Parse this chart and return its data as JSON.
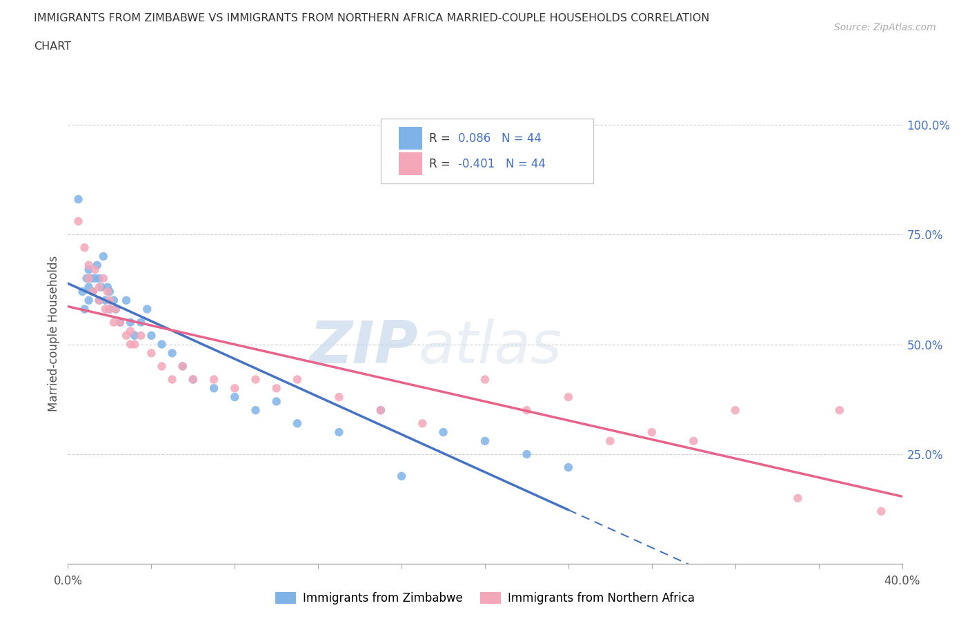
{
  "title_line1": "IMMIGRANTS FROM ZIMBABWE VS IMMIGRANTS FROM NORTHERN AFRICA MARRIED-COUPLE HOUSEHOLDS CORRELATION",
  "title_line2": "CHART",
  "source_text": "Source: ZipAtlas.com",
  "ylabel": "Married-couple Households",
  "xlim": [
    0.0,
    0.4
  ],
  "ylim": [
    0.0,
    1.05
  ],
  "ytick_labels_right": [
    "100.0%",
    "75.0%",
    "50.0%",
    "25.0%"
  ],
  "ytick_positions_right": [
    1.0,
    0.75,
    0.5,
    0.25
  ],
  "r_zimbabwe": 0.086,
  "n_zimbabwe": 44,
  "r_north_africa": -0.401,
  "n_north_africa": 44,
  "color_zimbabwe": "#7fb3e8",
  "color_north_africa": "#f4a7b9",
  "line_color_zimbabwe": "#4472c4",
  "line_color_north_africa": "#e8628a",
  "watermark_part1": "ZIP",
  "watermark_part2": "atlas",
  "scatter_zimbabwe_x": [
    0.005,
    0.007,
    0.008,
    0.009,
    0.01,
    0.01,
    0.01,
    0.011,
    0.012,
    0.013,
    0.014,
    0.015,
    0.015,
    0.016,
    0.017,
    0.018,
    0.019,
    0.02,
    0.02,
    0.022,
    0.023,
    0.025,
    0.028,
    0.03,
    0.032,
    0.035,
    0.038,
    0.04,
    0.045,
    0.05,
    0.055,
    0.06,
    0.07,
    0.08,
    0.09,
    0.1,
    0.11,
    0.13,
    0.15,
    0.16,
    0.18,
    0.2,
    0.22,
    0.24
  ],
  "scatter_zimbabwe_y": [
    0.83,
    0.62,
    0.58,
    0.65,
    0.6,
    0.63,
    0.67,
    0.65,
    0.62,
    0.65,
    0.68,
    0.6,
    0.65,
    0.63,
    0.7,
    0.6,
    0.63,
    0.58,
    0.62,
    0.6,
    0.58,
    0.55,
    0.6,
    0.55,
    0.52,
    0.55,
    0.58,
    0.52,
    0.5,
    0.48,
    0.45,
    0.42,
    0.4,
    0.38,
    0.35,
    0.37,
    0.32,
    0.3,
    0.35,
    0.2,
    0.3,
    0.28,
    0.25,
    0.22
  ],
  "scatter_north_africa_x": [
    0.005,
    0.008,
    0.01,
    0.01,
    0.012,
    0.013,
    0.015,
    0.015,
    0.017,
    0.018,
    0.019,
    0.02,
    0.02,
    0.022,
    0.023,
    0.025,
    0.028,
    0.03,
    0.03,
    0.032,
    0.035,
    0.04,
    0.045,
    0.05,
    0.055,
    0.06,
    0.07,
    0.08,
    0.09,
    0.1,
    0.11,
    0.13,
    0.15,
    0.17,
    0.2,
    0.22,
    0.24,
    0.26,
    0.28,
    0.3,
    0.32,
    0.35,
    0.37,
    0.39
  ],
  "scatter_north_africa_y": [
    0.78,
    0.72,
    0.65,
    0.68,
    0.62,
    0.67,
    0.6,
    0.63,
    0.65,
    0.58,
    0.62,
    0.58,
    0.6,
    0.55,
    0.58,
    0.55,
    0.52,
    0.5,
    0.53,
    0.5,
    0.52,
    0.48,
    0.45,
    0.42,
    0.45,
    0.42,
    0.42,
    0.4,
    0.42,
    0.4,
    0.42,
    0.38,
    0.35,
    0.32,
    0.42,
    0.35,
    0.38,
    0.28,
    0.3,
    0.28,
    0.35,
    0.15,
    0.35,
    0.12
  ],
  "background_color": "#ffffff",
  "grid_color": "#d0d0d0"
}
